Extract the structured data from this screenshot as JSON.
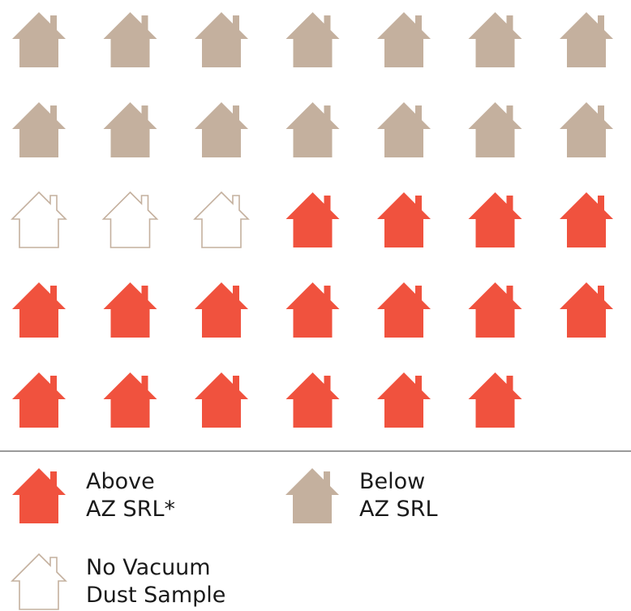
{
  "chart_data": {
    "type": "pictogram",
    "series": [
      {
        "name": "Below\nAZ SRL",
        "color": "#c4b09e",
        "value": 14
      },
      {
        "name": "No Vacuum\nDust Sample",
        "color": "#c4b09e",
        "value": 3,
        "style": "outline"
      },
      {
        "name": "Above\nAZ SRL*",
        "color": "#f0523e",
        "value": 17
      }
    ]
  }
}
